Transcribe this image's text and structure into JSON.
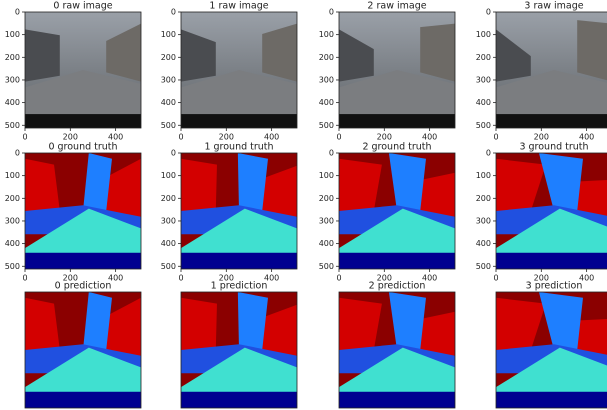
{
  "panels": [
    {
      "title": "0 raw image",
      "xlim": [
        0,
        512
      ],
      "ylim": [
        0,
        512
      ],
      "xticks": [
        0,
        200,
        400
      ],
      "yticks": [
        0,
        100,
        200,
        300,
        400,
        500
      ]
    },
    {
      "title": "1 raw image",
      "xlim": [
        0,
        512
      ],
      "ylim": [
        0,
        512
      ],
      "xticks": [
        0,
        200,
        400
      ],
      "yticks": [
        0,
        100,
        200,
        300,
        400,
        500
      ]
    },
    {
      "title": "2 raw image",
      "xlim": [
        0,
        512
      ],
      "ylim": [
        0,
        512
      ],
      "xticks": [
        0,
        200,
        400
      ],
      "yticks": [
        0,
        100,
        200,
        300,
        400,
        500
      ]
    },
    {
      "title": "3 raw image",
      "xlim": [
        0,
        512
      ],
      "ylim": [
        0,
        512
      ],
      "xticks": [
        0,
        200,
        400
      ],
      "yticks": [
        0,
        100,
        200,
        300,
        400,
        500
      ]
    },
    {
      "title": "0 ground truth",
      "xlim": [
        0,
        512
      ],
      "ylim": [
        0,
        512
      ],
      "xticks": [
        0,
        200,
        400
      ],
      "yticks": [
        0,
        100,
        200,
        300,
        400,
        500
      ]
    },
    {
      "title": "1 ground truth",
      "xlim": [
        0,
        512
      ],
      "ylim": [
        0,
        512
      ],
      "xticks": [
        0,
        200,
        400
      ],
      "yticks": [
        0,
        100,
        200,
        300,
        400,
        500
      ]
    },
    {
      "title": "2 ground truth",
      "xlim": [
        0,
        512
      ],
      "ylim": [
        0,
        512
      ],
      "xticks": [
        0,
        200,
        400
      ],
      "yticks": [
        0,
        100,
        200,
        300,
        400,
        500
      ]
    },
    {
      "title": "3 ground truth",
      "xlim": [
        0,
        512
      ],
      "ylim": [
        0,
        512
      ],
      "xticks": [
        0,
        200,
        400
      ],
      "yticks": [
        0,
        100,
        200,
        300,
        400,
        500
      ]
    },
    {
      "title": "0 prediction"
    },
    {
      "title": "1 prediction"
    },
    {
      "title": "2 prediction"
    },
    {
      "title": "3 prediction"
    }
  ]
}
